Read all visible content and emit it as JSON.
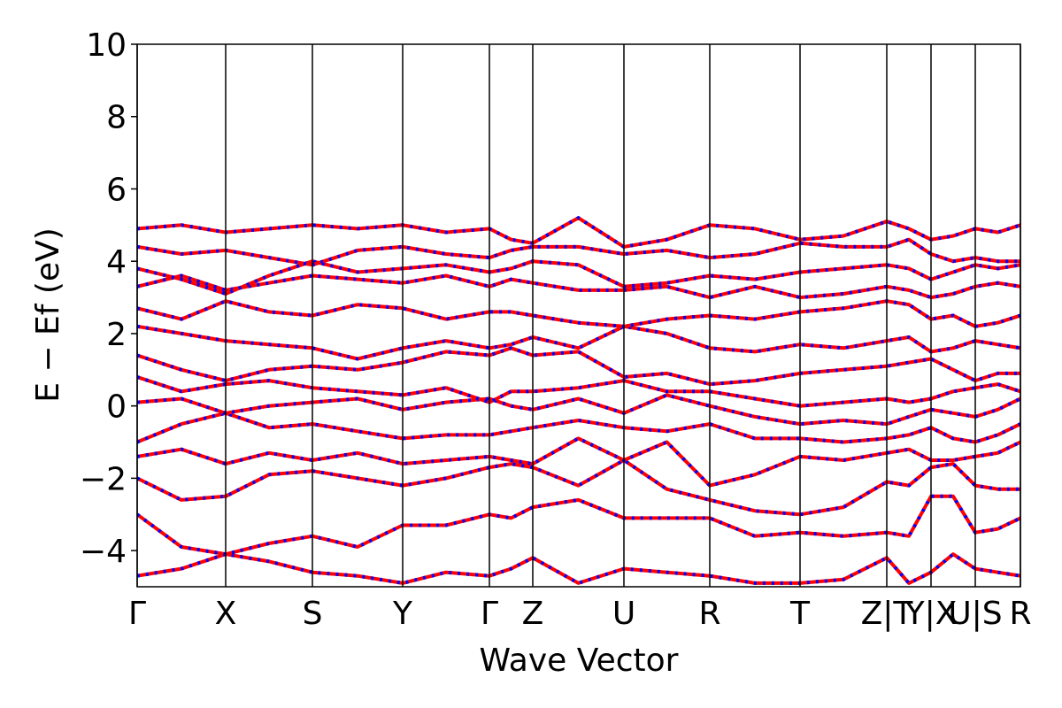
{
  "chart_data": {
    "type": "line",
    "xlabel": "Wave Vector",
    "ylabel": "E − Ef (eV)",
    "xlim": [
      0,
      9.98
    ],
    "xticks": [
      {
        "value": 0,
        "label": "Γ"
      },
      {
        "value": 1.0,
        "label": "X"
      },
      {
        "value": 1.98,
        "label": "S"
      },
      {
        "value": 3.0,
        "label": "Y"
      },
      {
        "value": 3.98,
        "label": "Γ"
      },
      {
        "value": 4.47,
        "label": "Z"
      },
      {
        "value": 5.5,
        "label": "U"
      },
      {
        "value": 6.47,
        "label": "R"
      },
      {
        "value": 7.49,
        "label": "T"
      },
      {
        "value": 8.47,
        "label": "Z|T"
      },
      {
        "value": 8.97,
        "label": "Y|X"
      },
      {
        "value": 9.47,
        "label": "U|S"
      },
      {
        "value": 9.98,
        "label": "R"
      }
    ],
    "ylim": [
      -5,
      10
    ],
    "yticks": [
      {
        "value": -4,
        "label": "−4"
      },
      {
        "value": -2,
        "label": "−2"
      },
      0,
      2,
      4,
      6,
      8,
      10
    ],
    "dash_color": "#0000ff",
    "x": [
      0,
      0.5,
      1.0,
      1.49,
      1.98,
      2.49,
      3.0,
      3.49,
      3.98,
      4.225,
      4.47,
      4.985,
      5.5,
      5.985,
      6.47,
      6.98,
      7.49,
      7.98,
      8.47,
      8.72,
      8.97,
      9.22,
      9.47,
      9.725,
      9.98
    ],
    "series": [
      {
        "color": "#ff0000",
        "values": [
          -4.7,
          -4.5,
          -4.1,
          -4.3,
          -4.6,
          -4.7,
          -4.9,
          -4.6,
          -4.7,
          -4.5,
          -4.2,
          -4.9,
          -4.5,
          -4.6,
          -4.7,
          -4.9,
          -4.9,
          -4.8,
          -4.2,
          -4.9,
          -4.6,
          -4.1,
          -4.5,
          -4.6,
          -4.7
        ]
      },
      {
        "color": "#ff0000",
        "values": [
          -3.0,
          -3.9,
          -4.1,
          -3.8,
          -3.6,
          -3.9,
          -3.3,
          -3.3,
          -3.0,
          -3.1,
          -2.8,
          -2.6,
          -3.1,
          -3.1,
          -3.1,
          -3.6,
          -3.5,
          -3.6,
          -3.5,
          -3.6,
          -2.5,
          -2.5,
          -3.5,
          -3.4,
          -3.1
        ]
      },
      {
        "color": "#ff0000",
        "values": [
          -2.0,
          -2.6,
          -2.5,
          -1.9,
          -1.8,
          -2.0,
          -2.2,
          -2.0,
          -1.7,
          -1.6,
          -1.7,
          -2.2,
          -1.5,
          -2.3,
          -2.6,
          -2.9,
          -3.0,
          -2.8,
          -2.1,
          -2.2,
          -1.7,
          -1.6,
          -2.2,
          -2.3,
          -2.3
        ]
      },
      {
        "color": "#ff0000",
        "values": [
          -1.4,
          -1.2,
          -1.6,
          -1.3,
          -1.5,
          -1.3,
          -1.6,
          -1.5,
          -1.4,
          -1.5,
          -1.6,
          -0.9,
          -1.5,
          -1.0,
          -2.2,
          -1.9,
          -1.4,
          -1.5,
          -1.3,
          -1.2,
          -1.5,
          -1.5,
          -1.4,
          -1.3,
          -1.0
        ]
      },
      {
        "color": "#ff0000",
        "values": [
          -1.0,
          -0.5,
          -0.2,
          -0.6,
          -0.5,
          -0.7,
          -0.9,
          -0.8,
          -0.8,
          -0.7,
          -0.6,
          -0.4,
          -0.6,
          -0.7,
          -0.5,
          -0.9,
          -0.9,
          -1.0,
          -0.9,
          -0.8,
          -0.6,
          -0.9,
          -1.0,
          -0.8,
          -0.5
        ]
      },
      {
        "color": "#ff0000",
        "values": [
          0.1,
          0.2,
          -0.2,
          0.0,
          0.1,
          0.2,
          -0.1,
          0.1,
          0.2,
          0.0,
          -0.1,
          0.2,
          -0.2,
          0.3,
          0.0,
          -0.3,
          -0.5,
          -0.4,
          -0.5,
          -0.3,
          -0.1,
          -0.2,
          -0.3,
          -0.1,
          0.2
        ]
      },
      {
        "color": "#ff0000",
        "values": [
          0.8,
          0.4,
          0.6,
          0.7,
          0.5,
          0.4,
          0.3,
          0.5,
          0.1,
          0.4,
          0.4,
          0.5,
          0.7,
          0.4,
          0.4,
          0.2,
          0.0,
          0.1,
          0.2,
          0.1,
          0.2,
          0.4,
          0.5,
          0.6,
          0.4
        ]
      },
      {
        "color": "#ff0000",
        "values": [
          1.4,
          1.0,
          0.7,
          1.0,
          1.1,
          1.0,
          1.2,
          1.5,
          1.4,
          1.6,
          1.4,
          1.5,
          0.8,
          0.9,
          0.6,
          0.7,
          0.9,
          1.0,
          1.1,
          1.2,
          1.3,
          1.0,
          0.7,
          0.9,
          0.9
        ]
      },
      {
        "color": "#ff0000",
        "values": [
          2.2,
          2.0,
          1.8,
          1.7,
          1.6,
          1.3,
          1.6,
          1.8,
          1.6,
          1.7,
          1.9,
          1.6,
          2.2,
          2.0,
          1.6,
          1.5,
          1.7,
          1.6,
          1.8,
          1.9,
          1.5,
          1.6,
          1.8,
          1.7,
          1.6
        ]
      },
      {
        "color": "#ff0000",
        "values": [
          2.7,
          2.4,
          2.9,
          2.6,
          2.5,
          2.8,
          2.7,
          2.4,
          2.6,
          2.6,
          2.5,
          2.3,
          2.2,
          2.4,
          2.5,
          2.4,
          2.6,
          2.7,
          2.9,
          2.8,
          2.4,
          2.5,
          2.2,
          2.3,
          2.5
        ]
      },
      {
        "color": "#ff0000",
        "values": [
          3.3,
          3.6,
          3.2,
          3.4,
          3.6,
          3.5,
          3.4,
          3.6,
          3.3,
          3.5,
          3.4,
          3.2,
          3.2,
          3.3,
          3.0,
          3.3,
          3.0,
          3.1,
          3.3,
          3.2,
          3.0,
          3.1,
          3.3,
          3.4,
          3.3
        ]
      },
      {
        "color": "#ff0000",
        "values": [
          3.8,
          3.5,
          3.1,
          3.6,
          4.0,
          3.7,
          3.8,
          3.9,
          3.7,
          3.8,
          4.0,
          3.9,
          3.3,
          3.4,
          3.6,
          3.5,
          3.7,
          3.8,
          3.9,
          3.8,
          3.5,
          3.7,
          3.9,
          3.8,
          3.9
        ]
      },
      {
        "color": "#ff0000",
        "values": [
          4.4,
          4.2,
          4.3,
          4.1,
          3.9,
          4.3,
          4.4,
          4.2,
          4.1,
          4.3,
          4.4,
          4.4,
          4.2,
          4.3,
          4.1,
          4.2,
          4.5,
          4.4,
          4.4,
          4.6,
          4.2,
          4.0,
          4.1,
          4.0,
          4.0
        ]
      },
      {
        "color": "#ff0000",
        "values": [
          4.9,
          5.0,
          4.8,
          4.9,
          5.0,
          4.9,
          5.0,
          4.8,
          4.9,
          4.6,
          4.5,
          5.2,
          4.4,
          4.6,
          5.0,
          4.9,
          4.6,
          4.7,
          5.1,
          4.9,
          4.6,
          4.7,
          4.9,
          4.8,
          5.0
        ]
      }
    ]
  }
}
